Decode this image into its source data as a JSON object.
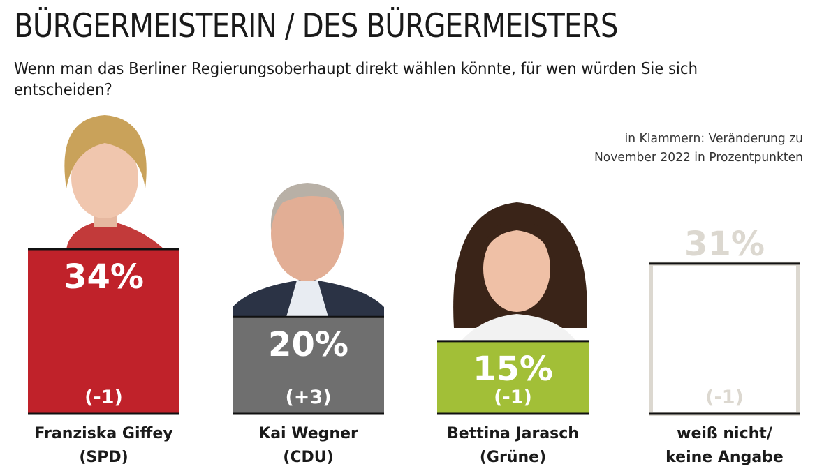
{
  "title": "BÜRGERMEISTERIN / DES BÜRGERMEISTERS",
  "subtitle": "Wenn man das Berliner Regierungsoberhaupt direkt wählen könnte, für wen würden Sie sich entscheiden?",
  "note": [
    "in Klammern: Veränderung zu",
    "November 2022 in Prozentpunkten"
  ],
  "chart_data": {
    "type": "bar",
    "categories": [
      [
        "Franziska Giffey",
        "(SPD)"
      ],
      [
        "Kai Wegner",
        "(CDU)"
      ],
      [
        "Bettina Jarasch",
        "(Grüne)"
      ],
      [
        "weiß nicht/",
        "keine Angabe"
      ]
    ],
    "values": [
      34,
      20,
      15,
      31
    ],
    "value_labels": [
      "34%",
      "20%",
      "15%",
      "31%"
    ],
    "changes": [
      "(-1)",
      "(+3)",
      "(-1)",
      "(-1)"
    ],
    "colors": [
      "#c0222a",
      "#6f6f6f",
      "#a2bf37",
      "#ffffff"
    ],
    "outline_color": "#dcd8d0",
    "unit": "%"
  }
}
